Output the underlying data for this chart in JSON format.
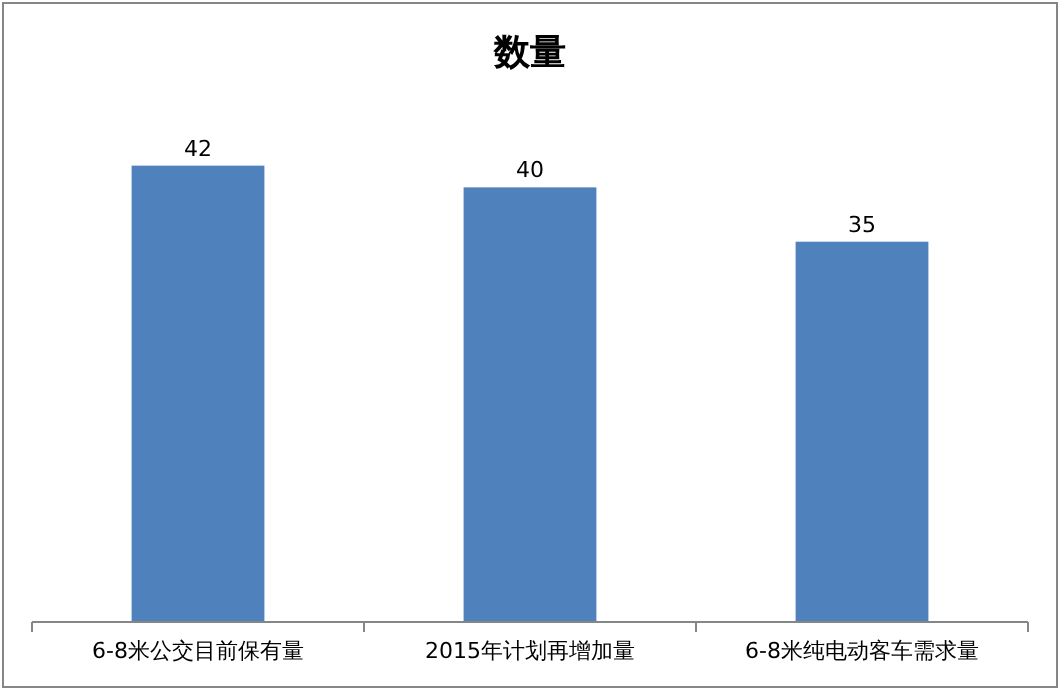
{
  "chart_data": {
    "type": "bar",
    "title": "数量",
    "categories": [
      "6-8米公交目前保有量",
      "2015年计划再增加量",
      "6-8米纯电动客车需求量"
    ],
    "values": [
      42,
      40,
      35
    ],
    "color": "#4f81bd",
    "data_labels": true
  }
}
